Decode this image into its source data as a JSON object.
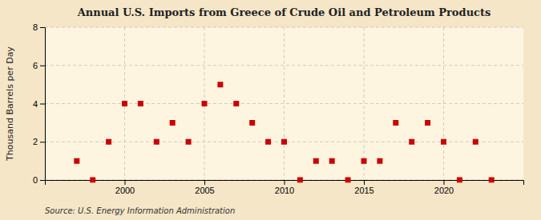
{
  "chart_data": {
    "type": "scatter",
    "title": "Annual U.S. Imports from Greece of Crude Oil and Petroleum Products",
    "ylabel": "Thousand Barrels per Day",
    "annotations": [
      "Source: U.S. Energy Information Administration"
    ],
    "x": [
      1997,
      1998,
      1999,
      2000,
      2001,
      2002,
      2003,
      2004,
      2005,
      2006,
      2007,
      2008,
      2009,
      2010,
      2011,
      2012,
      2013,
      2014,
      2015,
      2016,
      2017,
      2018,
      2019,
      2020,
      2021,
      2022,
      2023
    ],
    "values": [
      1,
      0,
      2,
      4,
      4,
      2,
      3,
      2,
      4,
      5,
      4,
      3,
      2,
      2,
      0,
      1,
      1,
      0,
      1,
      1,
      3,
      2,
      3,
      2,
      0,
      2,
      0
    ],
    "color": "#cc0000",
    "marker": "square",
    "xlim": [
      1995,
      2025
    ],
    "xticks": [
      2000,
      2005,
      2010,
      2015,
      2020
    ],
    "ylim": [
      0,
      8
    ],
    "yticks": [
      0,
      2,
      4,
      6,
      8
    ],
    "grid": true
  }
}
